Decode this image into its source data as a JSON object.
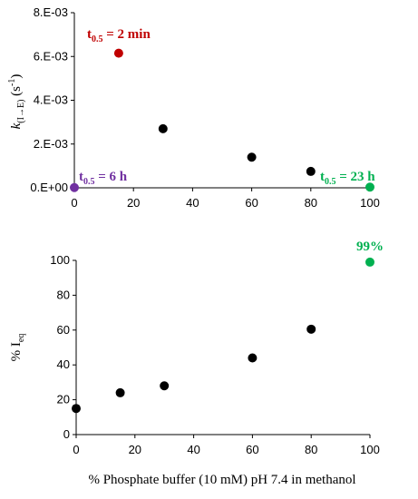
{
  "chart_data": [
    {
      "type": "scatter",
      "ylabel": {
        "main": "k",
        "sub": "(I→E)",
        "unit": " (s",
        "exp": "-1",
        "close": ")"
      },
      "xlim": [
        0,
        100
      ],
      "ylim": [
        0,
        0.008
      ],
      "xticks": [
        "0",
        "20",
        "40",
        "60",
        "80",
        "100"
      ],
      "yticks": [
        "0.E+00",
        "2.E-03",
        "4.E-03",
        "6.E-03",
        "8.E-03"
      ],
      "points": [
        {
          "x": 0,
          "y": 1e-05,
          "color": "#7030a0"
        },
        {
          "x": 15,
          "y": 0.00615,
          "color": "#c00000"
        },
        {
          "x": 30,
          "y": 0.0027,
          "color": "#000000"
        },
        {
          "x": 60,
          "y": 0.0014,
          "color": "#000000"
        },
        {
          "x": 80,
          "y": 0.00075,
          "color": "#000000"
        },
        {
          "x": 100,
          "y": 3e-05,
          "color": "#00b050"
        }
      ],
      "annotations": [
        {
          "base": "t",
          "sub": "0.5",
          "rest": " = 2 min",
          "color": "#c00000"
        },
        {
          "base": "t",
          "sub": "0.5",
          "rest": " = 6 h",
          "color": "#7030a0"
        },
        {
          "base": "t",
          "sub": "0.5",
          "rest": " = 23 h",
          "color": "#00b050"
        }
      ],
      "grid": false
    },
    {
      "type": "scatter",
      "ylabel": {
        "main": "% I",
        "sub": "eq"
      },
      "xlabel": "% Phosphate buffer (10 mM) pH 7.4 in methanol",
      "xlim": [
        0,
        100
      ],
      "ylim": [
        0,
        100
      ],
      "xticks": [
        "0",
        "20",
        "40",
        "60",
        "80",
        "100"
      ],
      "yticks": [
        "0",
        "20",
        "40",
        "60",
        "80",
        "100"
      ],
      "points": [
        {
          "x": 0,
          "y": 15,
          "color": "#000000"
        },
        {
          "x": 15,
          "y": 24,
          "color": "#000000"
        },
        {
          "x": 30,
          "y": 28,
          "color": "#000000"
        },
        {
          "x": 60,
          "y": 44,
          "color": "#000000"
        },
        {
          "x": 80,
          "y": 60.5,
          "color": "#000000"
        },
        {
          "x": 100,
          "y": 99,
          "color": "#00b050"
        }
      ],
      "annotations": [
        {
          "text": "99%",
          "color": "#00b050"
        }
      ],
      "grid": false
    }
  ]
}
